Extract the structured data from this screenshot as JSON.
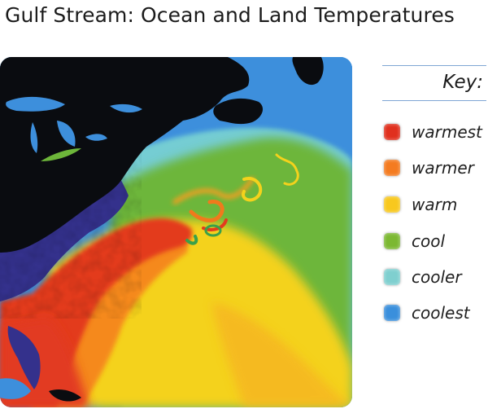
{
  "title": "Gulf Stream: Ocean and Land Temperatures",
  "key": {
    "heading": "Key:",
    "items": [
      {
        "label": "warmest",
        "color": "#e0301e"
      },
      {
        "label": "warmer",
        "color": "#f47b20"
      },
      {
        "label": "warm",
        "color": "#f8c81e"
      },
      {
        "label": "cool",
        "color": "#7cb832"
      },
      {
        "label": "cooler",
        "color": "#7fcfcf"
      },
      {
        "label": "coolest",
        "color": "#3a8fdc"
      }
    ]
  },
  "map": {
    "colors": {
      "land": "#0a0c10",
      "coastal_land": "#34318c",
      "coolest_ocean": "#3d8fdc",
      "cooler_ocean": "#74cdd3",
      "cool_ocean": "#6db63a",
      "warm_ocean": "#f4d21c",
      "warmer_ocean": "#f5891f",
      "warmest_ocean": "#e33a1e",
      "lakes": "#3d8fdc"
    }
  }
}
